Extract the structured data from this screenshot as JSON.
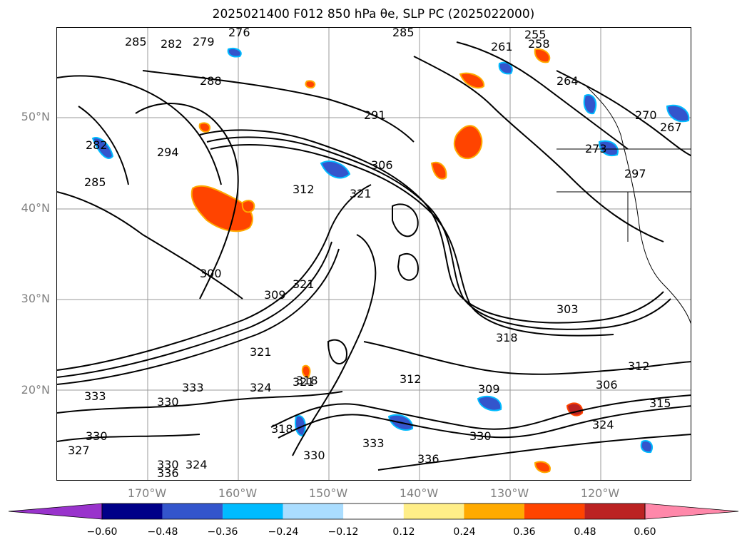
{
  "title": "2025021400 F012 850 hPa θe, SLP PC (2025022000)",
  "lat_ticks": [
    "50°N",
    "40°N",
    "30°N",
    "20°N"
  ],
  "lon_ticks": [
    "170°W",
    "160°W",
    "150°W",
    "140°W",
    "130°W",
    "120°W"
  ],
  "map_extent": {
    "lon_min": -180,
    "lon_max": -110,
    "lat_min": 10,
    "lat_max": 60
  },
  "contour_labels": [
    "285",
    "282",
    "279",
    "276",
    "285",
    "255",
    "261",
    "258",
    "288",
    "264",
    "291",
    "270",
    "267",
    "282",
    "294",
    "306",
    "273",
    "285",
    "312",
    "321",
    "297",
    "300",
    "309",
    "321",
    "303",
    "318",
    "312",
    "321",
    "312",
    "309",
    "306",
    "333",
    "330",
    "333",
    "324",
    "321",
    "318",
    "315",
    "324",
    "330",
    "333",
    "336",
    "330",
    "327",
    "330",
    "324",
    "318",
    "330",
    "336"
  ],
  "colorbar": {
    "colors": [
      "#9933cc",
      "#000088",
      "#3355cc",
      "#00bbff",
      "#aaddff",
      "#ffffff",
      "#ffee88",
      "#ffaa00",
      "#ff4400",
      "#bb2222",
      "#ff88aa"
    ],
    "tick_labels": [
      "−0.60",
      "−0.48",
      "−0.36",
      "−0.24",
      "−0.12",
      "0.12",
      "0.24",
      "0.36",
      "0.48",
      "0.60"
    ]
  }
}
